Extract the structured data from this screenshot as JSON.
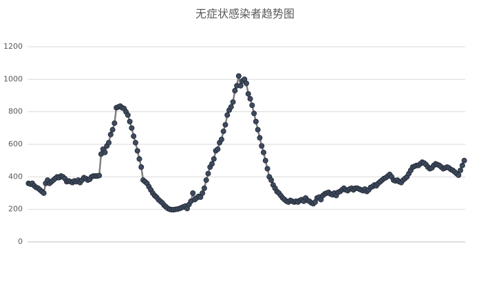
{
  "chart_data": {
    "type": "line",
    "title": "无症状感染者趋势图",
    "ylim": [
      0,
      1200
    ],
    "yticks": [
      0,
      200,
      400,
      600,
      800,
      1000,
      1200
    ],
    "grid": true,
    "series": [
      {
        "color": "#3e4a5d",
        "line_color": "#7f7f7f",
        "values": [
          360,
          355,
          360,
          345,
          335,
          330,
          320,
          310,
          300,
          360,
          380,
          360,
          370,
          380,
          390,
          400,
          395,
          405,
          400,
          390,
          370,
          375,
          370,
          365,
          375,
          370,
          380,
          365,
          380,
          395,
          390,
          380,
          385,
          400,
          405,
          405,
          405,
          408,
          540,
          570,
          550,
          590,
          610,
          660,
          690,
          730,
          825,
          830,
          835,
          825,
          820,
          800,
          780,
          740,
          700,
          650,
          610,
          560,
          510,
          460,
          380,
          370,
          360,
          340,
          320,
          300,
          285,
          275,
          260,
          250,
          240,
          225,
          215,
          205,
          200,
          198,
          198,
          200,
          202,
          205,
          210,
          215,
          220,
          205,
          230,
          250,
          300,
          260,
          270,
          280,
          275,
          300,
          330,
          380,
          420,
          460,
          480,
          510,
          560,
          570,
          610,
          630,
          680,
          720,
          780,
          810,
          830,
          860,
          930,
          960,
          1020,
          960,
          990,
          1000,
          975,
          910,
          880,
          840,
          790,
          740,
          690,
          640,
          590,
          550,
          500,
          450,
          400,
          380,
          350,
          330,
          310,
          300,
          285,
          270,
          260,
          250,
          245,
          255,
          250,
          245,
          250,
          245,
          255,
          260,
          250,
          270,
          255,
          250,
          240,
          235,
          245,
          270,
          275,
          260,
          285,
          295,
          300,
          305,
          295,
          290,
          300,
          285,
          305,
          310,
          320,
          330,
          320,
          315,
          325,
          330,
          320,
          330,
          330,
          325,
          320,
          315,
          325,
          310,
          320,
          335,
          340,
          350,
          345,
          360,
          370,
          380,
          390,
          395,
          405,
          415,
          400,
          380,
          375,
          380,
          370,
          365,
          380,
          390,
          400,
          420,
          440,
          460,
          465,
          470,
          470,
          480,
          490,
          485,
          475,
          460,
          450,
          455,
          470,
          480,
          475,
          470,
          460,
          450,
          455,
          460,
          455,
          445,
          440,
          430,
          420,
          410,
          440,
          470,
          500
        ]
      }
    ]
  }
}
